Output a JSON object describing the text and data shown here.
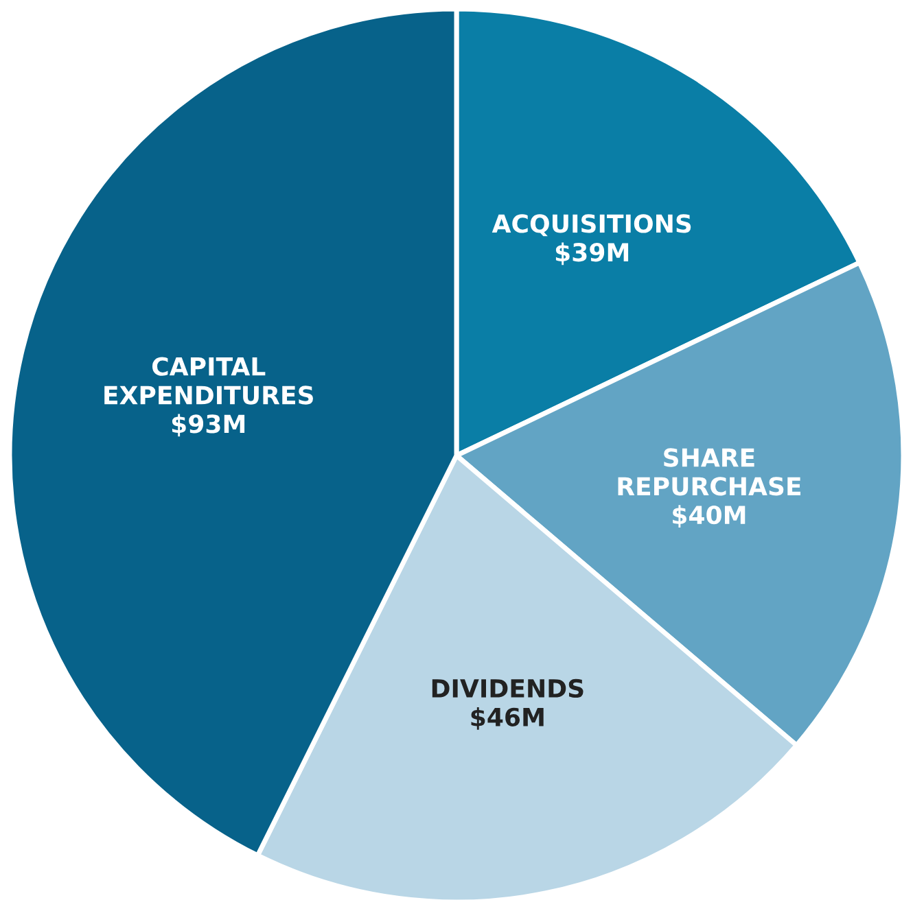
{
  "chart_data": {
    "type": "pie",
    "categories": [
      "ACQUISITIONS",
      "SHARE REPURCHASE",
      "DIVIDENDS",
      "CAPITAL EXPENDITURES"
    ],
    "values": [
      39,
      40,
      46,
      93
    ],
    "value_labels": [
      "$39M",
      "$40M",
      "$46M",
      "$93M"
    ],
    "colors": [
      "#0a7ea6",
      "#62a4c4",
      "#b9d6e6",
      "#07628a"
    ],
    "legend": false
  }
}
